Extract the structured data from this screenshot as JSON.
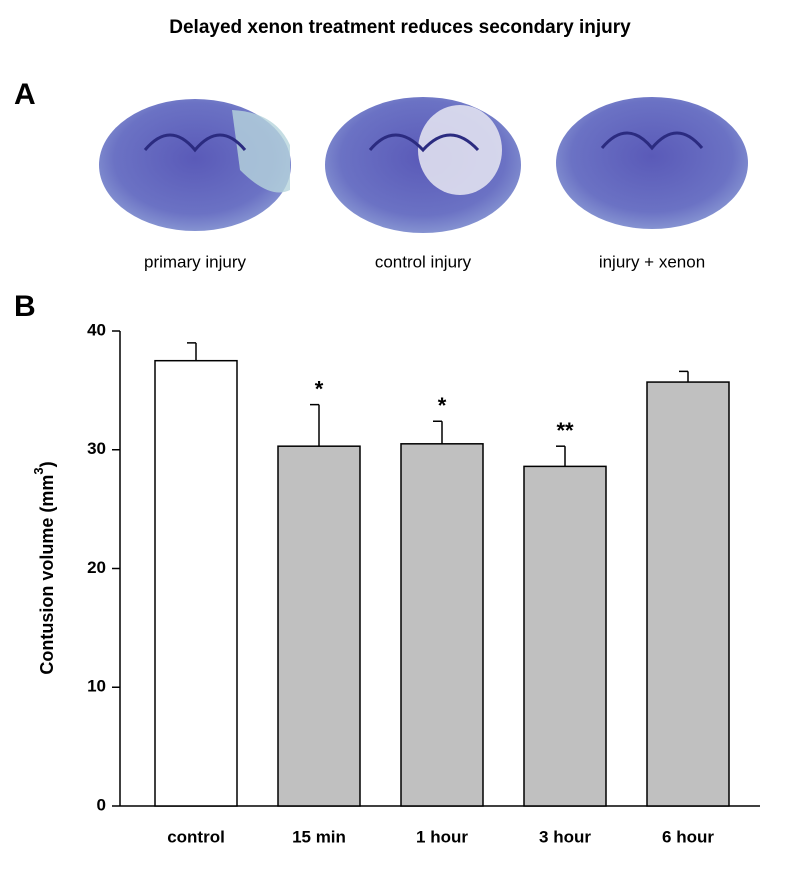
{
  "title": "Delayed xenon treatment reduces secondary injury",
  "panel_a": {
    "label": "A",
    "captions": [
      "primary injury",
      "control injury",
      "injury + xenon"
    ]
  },
  "panel_b": {
    "label": "B"
  },
  "chart_data": {
    "type": "bar",
    "categories": [
      "control",
      "15 min",
      "1 hour",
      "3 hour",
      "6 hour"
    ],
    "values": [
      37.5,
      30.3,
      30.5,
      28.6,
      35.7
    ],
    "errors": [
      1.5,
      3.5,
      1.9,
      1.7,
      0.9
    ],
    "significance": [
      null,
      "*",
      "*",
      "**",
      null
    ],
    "colors": [
      "#ffffff",
      "#c0c0c0",
      "#c0c0c0",
      "#c0c0c0",
      "#c0c0c0"
    ],
    "ylabel": {
      "text": "Contusion volume (mm",
      "sup": "3",
      "end": ")"
    },
    "ylim": [
      0,
      40
    ],
    "yticks": [
      0,
      10,
      20,
      30,
      40
    ]
  }
}
